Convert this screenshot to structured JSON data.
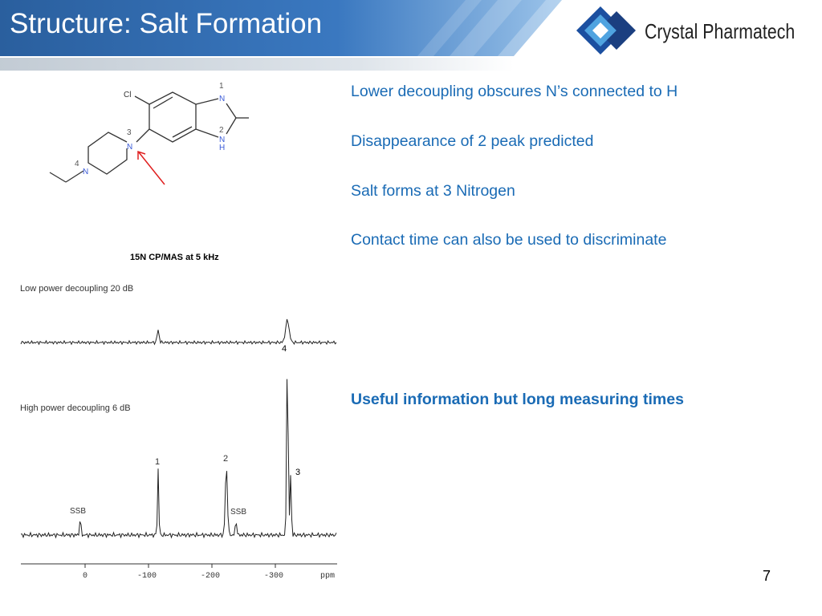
{
  "header": {
    "title": "Structure: Salt Formation",
    "logo": "Crystal Pharmatech"
  },
  "molecule": {
    "labels": [
      "Cl",
      "1",
      "N",
      "2",
      "N",
      "H",
      "3",
      "N",
      "4",
      "N"
    ]
  },
  "spectrum": {
    "title": "15N CP/MAS at 5 kHz",
    "traces": [
      "Low power decoupling 20 dB",
      "High power decoupling 6 dB"
    ],
    "peak_labels": [
      "4",
      "1",
      "2",
      "3",
      "SSB",
      "SSB"
    ],
    "axis_ticks": [
      "0",
      "-100",
      "-200",
      "-300"
    ],
    "axis_unit": "ppm"
  },
  "bullets": [
    "Lower decoupling obscures N’s connected to H",
    "Disappearance of 2 peak predicted",
    "Salt forms at 3 Nitrogen",
    "Contact time can also be used to discriminate"
  ],
  "conclusion": "Useful information but long measuring times",
  "page_number": "7"
}
